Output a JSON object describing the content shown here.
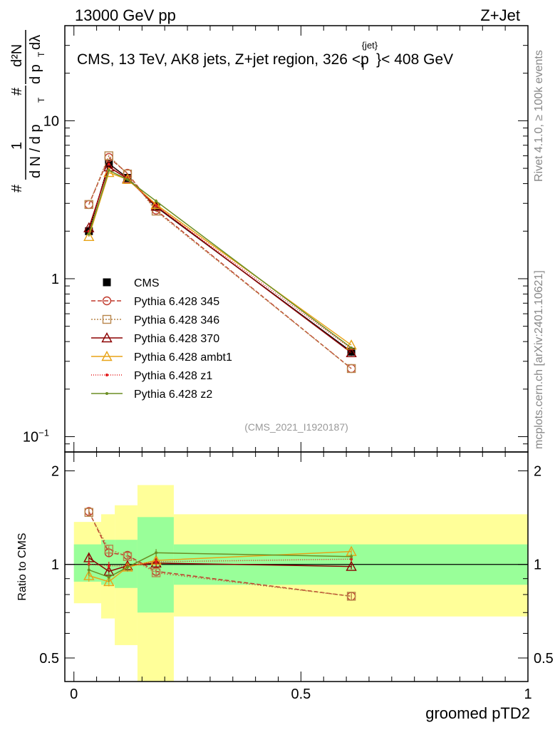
{
  "header": {
    "left": "13000 GeV pp",
    "right": "Z+Jet"
  },
  "side": {
    "right_top": "Rivet 4.1.0, ≥ 100k events",
    "right_bottom": "mcplots.cern.ch [arXiv:2401.10621]"
  },
  "colors": {
    "band_inner": "#99ff99",
    "band_outer": "#ffff99",
    "data": "#000000"
  },
  "chart_data": [
    {
      "type": "line",
      "panel": "main",
      "title_main": "CMS, 13 TeV, AK8 jets, Z+jet region, 326 <p",
      "title_sup": "{jet}",
      "title_sub": "T",
      "title_end": "}< 408 GeV",
      "watermark": "(CMS_2021_I1920187)",
      "yscale": "log",
      "ylim": [
        0.08,
        40
      ],
      "xlim": [
        -0.02,
        1.0
      ],
      "ylabel": {
        "hash": "#",
        "one": "1",
        "dN": "d N / d p",
        "T1": "T",
        "hash2": "#",
        "d2N": "d²N",
        "dpT": "d p",
        "T2": "T",
        "dl": "dλ"
      },
      "yticks": [
        {
          "v": 10,
          "label": "10"
        },
        {
          "v": 1,
          "label": "1"
        },
        {
          "v": 0.1,
          "label": "10",
          "sup": "−1"
        }
      ],
      "x": [
        0.033,
        0.077,
        0.118,
        0.181,
        0.611
      ],
      "series": [
        {
          "name": "CMS",
          "color": "#000000",
          "marker": "square-filled",
          "dash": "none",
          "values": [
            2.0,
            5.35,
            4.35,
            2.85,
            0.345
          ],
          "errors": [
            0.15,
            0.3,
            0.2,
            0.2,
            0.02
          ]
        },
        {
          "name": "Pythia 6.428 345",
          "color": "#c0392b",
          "marker": "circle-open",
          "dash": "6,3",
          "values": [
            2.95,
            5.85,
            4.65,
            2.72,
            0.27
          ]
        },
        {
          "name": "Pythia 6.428 346",
          "color": "#b8864b",
          "marker": "square-open",
          "dash": "2,2",
          "values": [
            2.95,
            6.0,
            4.6,
            2.68,
            0.27
          ]
        },
        {
          "name": "Pythia 6.428 370",
          "color": "#8b0000",
          "marker": "triangle-open",
          "dash": "none",
          "values": [
            2.1,
            5.1,
            4.3,
            2.88,
            0.34
          ]
        },
        {
          "name": "Pythia 6.428 ambt1",
          "color": "#e8a317",
          "marker": "triangle-open",
          "dash": "none",
          "values": [
            1.85,
            4.7,
            4.25,
            2.95,
            0.38
          ]
        },
        {
          "name": "Pythia 6.428 z1",
          "color": "#e31a1c",
          "marker": "dot",
          "dash": "1,2",
          "values": [
            2.0,
            5.3,
            4.3,
            2.9,
            0.36
          ]
        },
        {
          "name": "Pythia 6.428 z2",
          "color": "#6b8e23",
          "marker": "dot",
          "dash": "none",
          "values": [
            1.92,
            4.85,
            4.25,
            3.1,
            0.365
          ]
        }
      ]
    },
    {
      "type": "line",
      "panel": "ratio",
      "ylabel": "Ratio to CMS",
      "xlabel": "groomed pTD2",
      "yscale": "log",
      "ylim": [
        0.42,
        2.3
      ],
      "xlim": [
        -0.02,
        1.0
      ],
      "yticks": [
        {
          "v": 2,
          "label": "2"
        },
        {
          "v": 1,
          "label": "1"
        },
        {
          "v": 0.5,
          "label": "0.5"
        }
      ],
      "xticks": [
        {
          "v": 0,
          "label": "0"
        },
        {
          "v": 0.5,
          "label": "0.5"
        },
        {
          "v": 1,
          "label": "1"
        }
      ],
      "bins": [
        {
          "lo": 0.0,
          "hi": 0.06,
          "inner": [
            0.88,
            1.16
          ],
          "outer": [
            0.75,
            1.37
          ]
        },
        {
          "lo": 0.06,
          "hi": 0.09,
          "inner": [
            0.86,
            1.2
          ],
          "outer": [
            0.67,
            1.45
          ]
        },
        {
          "lo": 0.09,
          "hi": 0.14,
          "inner": [
            0.84,
            1.2
          ],
          "outer": [
            0.55,
            1.55
          ]
        },
        {
          "lo": 0.14,
          "hi": 0.22,
          "inner": [
            0.7,
            1.42
          ],
          "outer": [
            0.4,
            1.8
          ]
        },
        {
          "lo": 0.22,
          "hi": 1.0,
          "inner": [
            0.86,
            1.16
          ],
          "outer": [
            0.68,
            1.45
          ]
        }
      ],
      "x": [
        0.033,
        0.077,
        0.118,
        0.181,
        0.611
      ],
      "series": [
        {
          "name": "Pythia 6.428 345",
          "values": [
            1.48,
            1.09,
            1.07,
            0.95,
            0.79
          ],
          "errors": [
            0.04,
            0.03,
            0.03,
            0.03,
            0.02
          ]
        },
        {
          "name": "Pythia 6.428 346",
          "values": [
            1.47,
            1.12,
            1.06,
            0.94,
            0.79
          ],
          "errors": [
            0.04,
            0.03,
            0.03,
            0.03,
            0.02
          ]
        },
        {
          "name": "Pythia 6.428 370",
          "values": [
            1.05,
            0.95,
            0.99,
            1.01,
            0.985
          ],
          "errors": [
            0.04,
            0.03,
            0.03,
            0.03,
            0.02
          ]
        },
        {
          "name": "Pythia 6.428 ambt1",
          "values": [
            0.92,
            0.88,
            0.98,
            1.03,
            1.1
          ],
          "errors": [
            0.04,
            0.03,
            0.03,
            0.03,
            0.02
          ]
        },
        {
          "name": "Pythia 6.428 z1",
          "values": [
            1.0,
            0.99,
            0.99,
            1.02,
            1.04
          ],
          "errors": [
            0.04,
            0.03,
            0.03,
            0.03,
            0.02
          ]
        },
        {
          "name": "Pythia 6.428 z2",
          "values": [
            0.96,
            0.91,
            0.98,
            1.09,
            1.06
          ],
          "errors": [
            0.04,
            0.03,
            0.03,
            0.03,
            0.02
          ]
        }
      ]
    }
  ]
}
